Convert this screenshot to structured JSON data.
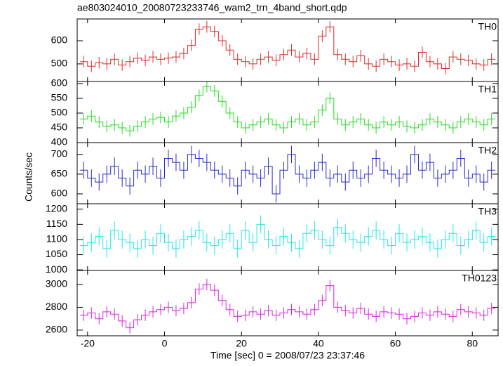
{
  "chart_data": {
    "type": "step",
    "title": "ae803024010_20080723233746_wam2_trn_4band_short.qdp",
    "xlabel": "Time [sec] 0 = 2008/07/23 23:37:46",
    "ylabel": "Counts/sec",
    "x": [
      -21,
      -19,
      -17,
      -15,
      -13,
      -11,
      -9,
      -7,
      -5,
      -3,
      -1,
      1,
      3,
      5,
      7,
      9,
      11,
      13,
      15,
      17,
      19,
      21,
      23,
      25,
      27,
      29,
      31,
      33,
      35,
      37,
      39,
      41,
      43,
      45,
      47,
      49,
      51,
      53,
      55,
      57,
      59,
      61,
      63,
      65,
      67,
      69,
      71,
      73,
      75,
      77,
      79,
      81,
      83,
      85
    ],
    "xlim": [
      -22.7,
      86.7
    ],
    "xticks": [
      -20,
      0,
      20,
      40,
      60,
      80
    ],
    "series": [
      {
        "name": "TH0",
        "color": "#e02a2a",
        "ylim": [
          424,
          694
        ],
        "yticks": [
          500,
          600
        ],
        "error": 25,
        "values": [
          510,
          490,
          505,
          500,
          520,
          495,
          510,
          525,
          515,
          530,
          520,
          525,
          530,
          545,
          580,
          650,
          660,
          640,
          600,
          560,
          520,
          510,
          500,
          520,
          530,
          515,
          540,
          560,
          530,
          545,
          520,
          620,
          660,
          540,
          520,
          510,
          535,
          500,
          490,
          520,
          510,
          495,
          500,
          490,
          550,
          510,
          500,
          480,
          530,
          520,
          515,
          500,
          495,
          520
        ]
      },
      {
        "name": "TH1",
        "color": "#22dd22",
        "ylim": [
          400,
          607
        ],
        "yticks": [
          400,
          450,
          500,
          550,
          600
        ],
        "error": 20,
        "values": [
          480,
          490,
          470,
          455,
          460,
          450,
          440,
          455,
          470,
          480,
          485,
          470,
          490,
          500,
          520,
          560,
          590,
          575,
          540,
          500,
          470,
          450,
          460,
          470,
          480,
          460,
          450,
          470,
          480,
          460,
          470,
          510,
          550,
          480,
          460,
          470,
          480,
          460,
          450,
          470,
          460,
          470,
          455,
          450,
          460,
          480,
          470,
          460,
          450,
          470,
          480,
          470,
          460,
          480
        ]
      },
      {
        "name": "TH2",
        "color": "#2a2acc",
        "ylim": [
          575,
          730
        ],
        "yticks": [
          600,
          650,
          700
        ],
        "error": 22,
        "values": [
          660,
          640,
          630,
          650,
          670,
          640,
          620,
          660,
          650,
          670,
          640,
          690,
          680,
          660,
          700,
          690,
          680,
          660,
          650,
          640,
          620,
          660,
          650,
          640,
          670,
          600,
          660,
          700,
          650,
          640,
          660,
          680,
          640,
          650,
          630,
          660,
          640,
          650,
          690,
          660,
          650,
          640,
          650,
          700,
          660,
          680,
          640,
          650,
          660,
          690,
          640,
          650,
          630,
          660
        ]
      },
      {
        "name": "TH3",
        "color": "#22e8e8",
        "ylim": [
          998,
          1218
        ],
        "yticks": [
          1000,
          1050,
          1100,
          1150,
          1200
        ],
        "error": 30,
        "values": [
          1080,
          1090,
          1110,
          1070,
          1130,
          1100,
          1090,
          1070,
          1100,
          1080,
          1120,
          1090,
          1070,
          1100,
          1110,
          1130,
          1090,
          1080,
          1100,
          1120,
          1070,
          1130,
          1090,
          1150,
          1100,
          1080,
          1110,
          1090,
          1070,
          1120,
          1130,
          1100,
          1080,
          1140,
          1120,
          1100,
          1090,
          1110,
          1130,
          1100,
          1080,
          1120,
          1090,
          1100,
          1110,
          1090,
          1070,
          1100,
          1120,
          1080,
          1100,
          1130,
          1090,
          1110
        ]
      },
      {
        "name": "TH0123",
        "color": "#dd22dd",
        "ylim": [
          2550,
          3123
        ],
        "yticks": [
          2600,
          2800,
          3000
        ],
        "error": 50,
        "values": [
          2730,
          2750,
          2700,
          2760,
          2740,
          2680,
          2620,
          2690,
          2730,
          2760,
          2780,
          2800,
          2770,
          2790,
          2840,
          2960,
          3000,
          2950,
          2860,
          2780,
          2720,
          2730,
          2760,
          2740,
          2770,
          2730,
          2750,
          2780,
          2760,
          2740,
          2780,
          2860,
          2990,
          2800,
          2770,
          2750,
          2790,
          2740,
          2720,
          2760,
          2750,
          2740,
          2700,
          2720,
          2750,
          2730,
          2760,
          2740,
          2720,
          2780,
          2760,
          2750,
          2730,
          2790
        ]
      }
    ]
  }
}
